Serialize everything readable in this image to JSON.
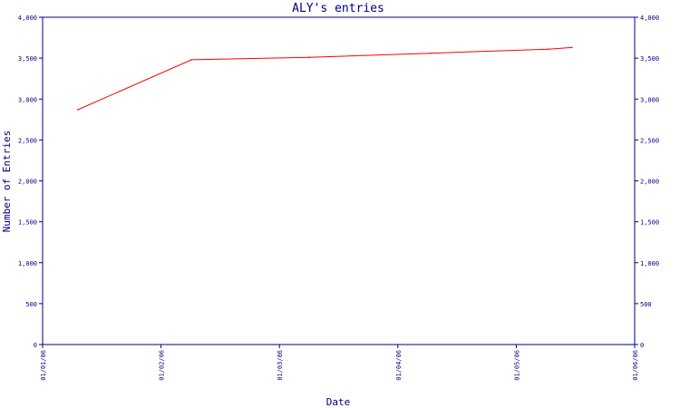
{
  "chart_data": {
    "type": "line",
    "title": "ALY's entries",
    "xlabel": "Date",
    "ylabel": "Number of Entries",
    "x_tick_labels": [
      "01/01/06",
      "01/02/06",
      "01/03/06",
      "01/04/06",
      "01/05/06",
      "01/06/06"
    ],
    "y_tick_labels": [
      "0",
      "500",
      "1,000",
      "1,500",
      "2,000",
      "2,500",
      "3,000",
      "3,500",
      "4,000"
    ],
    "ylim": [
      0,
      4000
    ],
    "xlim": [
      "2006-01-01",
      "2006-06-01"
    ],
    "grid": false,
    "series": [
      {
        "color": "#ff0000",
        "x": [
          "2006-01-10",
          "2006-02-08",
          "2006-03-10",
          "2006-04-10",
          "2006-05-10",
          "2006-05-16"
        ],
        "values": [
          2870,
          3480,
          3510,
          3560,
          3610,
          3630
        ]
      }
    ],
    "colors": {
      "axis": "#000080",
      "line": "#ff0000",
      "background": "#ffffff"
    }
  }
}
